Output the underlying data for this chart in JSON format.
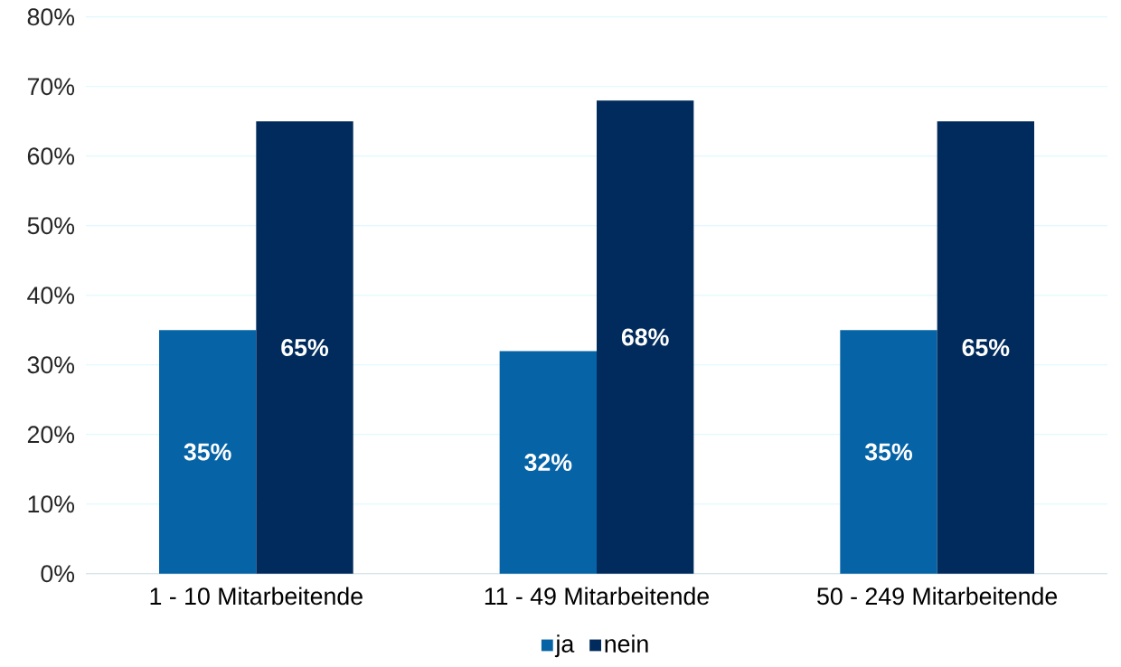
{
  "chart_data": {
    "type": "bar",
    "categories": [
      "1 - 10 Mitarbeitende",
      "11 - 49 Mitarbeitende",
      "50 - 249 Mitarbeitende"
    ],
    "series": [
      {
        "name": "ja",
        "color": "#0563a6",
        "values": [
          35,
          32,
          35
        ],
        "value_labels": [
          "35%",
          "32%",
          "35%"
        ]
      },
      {
        "name": "nein",
        "color": "#002b5c",
        "values": [
          65,
          68,
          65
        ],
        "value_labels": [
          "65%",
          "68%",
          "65%"
        ]
      }
    ],
    "ylim": [
      0,
      80
    ],
    "yticks": [
      {
        "value": 0,
        "label": "0%"
      },
      {
        "value": 10,
        "label": "10%"
      },
      {
        "value": 20,
        "label": "20%"
      },
      {
        "value": 30,
        "label": "30%"
      },
      {
        "value": 40,
        "label": "40%"
      },
      {
        "value": 50,
        "label": "50%"
      },
      {
        "value": 60,
        "label": "60%"
      },
      {
        "value": 70,
        "label": "70%"
      },
      {
        "value": 80,
        "label": "80%"
      }
    ],
    "grid": "y",
    "legend": "bottom"
  }
}
